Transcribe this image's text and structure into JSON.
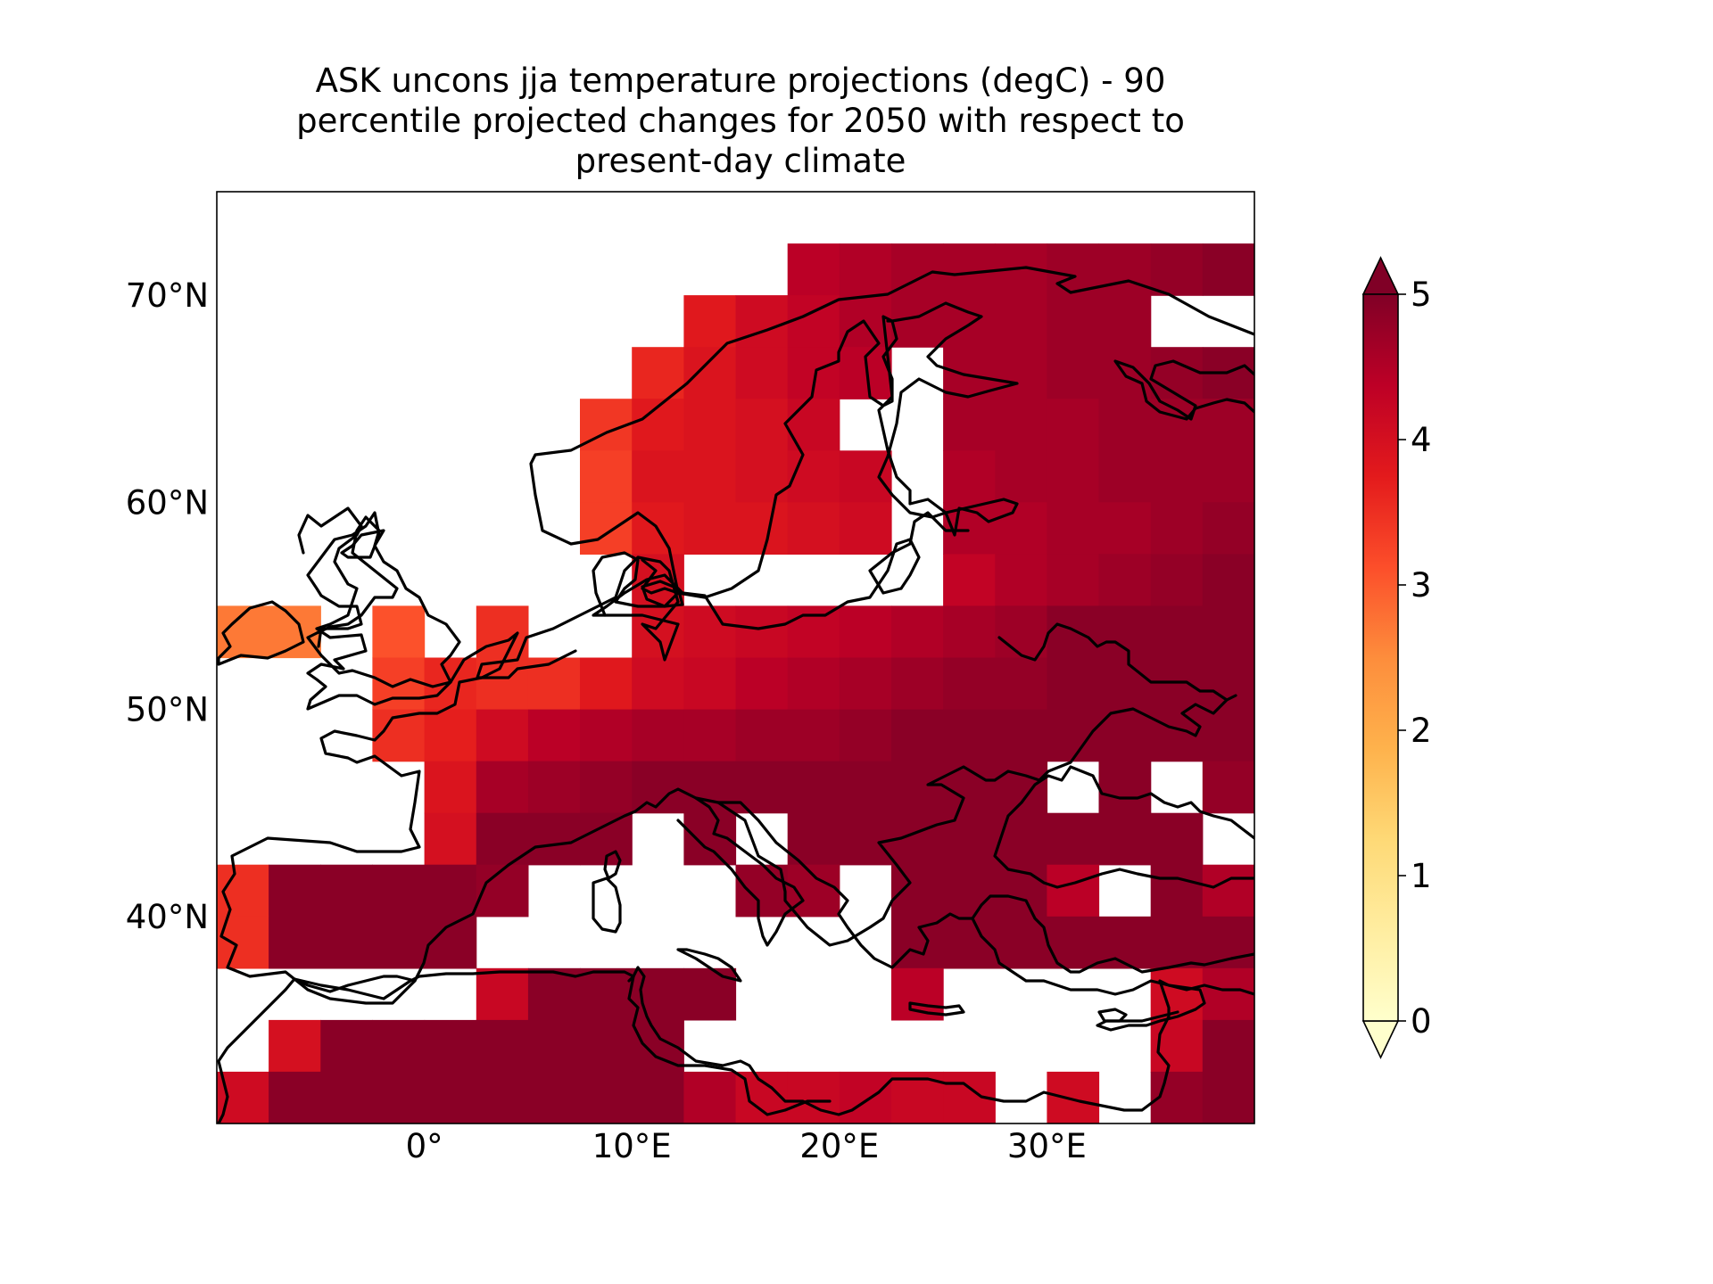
{
  "title_lines": [
    "ASK uncons jja temperature projections (degC) - 90",
    "percentile projected changes for 2050 with respect to",
    "present-day climate"
  ],
  "map": {
    "projection": "PlateCarree",
    "lon_range": [
      -10,
      40
    ],
    "lat_range": [
      30,
      75
    ],
    "lon_ticks": [
      {
        "value": 0,
        "label": "0°"
      },
      {
        "value": 10,
        "label": "10°E"
      },
      {
        "value": 20,
        "label": "20°E"
      },
      {
        "value": 30,
        "label": "30°E"
      }
    ],
    "lat_ticks": [
      {
        "value": 40,
        "label": "40°N"
      },
      {
        "value": 50,
        "label": "50°N"
      },
      {
        "value": 60,
        "label": "60°N"
      },
      {
        "value": 70,
        "label": "70°N"
      }
    ],
    "grid": false,
    "coastlines": true
  },
  "colorbar": {
    "colormap": "YlOrRd",
    "min": 0,
    "max": 5,
    "extend": "both",
    "placement": "right",
    "ticks": [
      {
        "value": 0,
        "label": "0"
      },
      {
        "value": 1,
        "label": "1"
      },
      {
        "value": 2,
        "label": "2"
      },
      {
        "value": 3,
        "label": "3"
      },
      {
        "value": 4,
        "label": "4"
      },
      {
        "value": 5,
        "label": "5"
      }
    ]
  },
  "chart_data": {
    "type": "heatmap",
    "grid_lon0": -10,
    "grid_lat0": 30,
    "cell_lon": 2.5,
    "cell_lat": 2.5,
    "vmin": 0,
    "vmax": 5,
    "rows": [
      {
        "lat": 70,
        "values": [
          null,
          null,
          null,
          null,
          null,
          null,
          null,
          null,
          null,
          null,
          null,
          4.4,
          4.5,
          4.6,
          4.6,
          4.6,
          4.7,
          4.7,
          4.8,
          4.9
        ]
      },
      {
        "lat": 67.5,
        "values": [
          null,
          null,
          null,
          null,
          null,
          null,
          null,
          null,
          null,
          3.8,
          4.1,
          4.3,
          4.5,
          4.6,
          4.6,
          4.6,
          4.7,
          4.7,
          null,
          null
        ]
      },
      {
        "lat": 65,
        "values": [
          null,
          null,
          null,
          null,
          null,
          null,
          null,
          null,
          3.6,
          3.9,
          4.1,
          4.3,
          4.4,
          null,
          4.6,
          4.6,
          4.7,
          4.7,
          4.8,
          4.9
        ]
      },
      {
        "lat": 62.5,
        "values": [
          null,
          null,
          null,
          null,
          null,
          null,
          null,
          3.4,
          3.8,
          3.9,
          4.0,
          4.2,
          null,
          null,
          4.6,
          4.6,
          4.6,
          4.7,
          4.7,
          4.7
        ]
      },
      {
        "lat": 60,
        "values": [
          null,
          null,
          null,
          null,
          null,
          null,
          null,
          3.3,
          3.9,
          3.9,
          4.0,
          4.1,
          4.2,
          null,
          4.5,
          4.6,
          4.6,
          4.7,
          4.7,
          4.7
        ]
      },
      {
        "lat": 57.5,
        "values": [
          null,
          null,
          null,
          null,
          null,
          null,
          null,
          3.3,
          3.8,
          3.9,
          3.9,
          4.0,
          4.1,
          null,
          4.5,
          4.5,
          4.6,
          4.6,
          4.7,
          4.8
        ]
      },
      {
        "lat": 55,
        "values": [
          null,
          null,
          null,
          null,
          null,
          null,
          null,
          null,
          4.0,
          null,
          null,
          null,
          null,
          null,
          4.3,
          4.5,
          4.6,
          4.7,
          4.8,
          4.9
        ]
      },
      {
        "lat": 52.5,
        "values": [
          2.7,
          2.7,
          null,
          3.1,
          null,
          3.5,
          null,
          null,
          4.0,
          4.1,
          4.2,
          4.3,
          4.4,
          4.5,
          4.6,
          4.7,
          4.9,
          4.9,
          4.9,
          4.9
        ]
      },
      {
        "lat": 50,
        "values": [
          null,
          null,
          null,
          3.3,
          3.6,
          3.5,
          3.5,
          3.8,
          4.1,
          4.2,
          4.4,
          4.5,
          4.6,
          4.7,
          4.8,
          4.8,
          4.9,
          4.9,
          4.9,
          4.9
        ]
      },
      {
        "lat": 47.5,
        "values": [
          null,
          null,
          null,
          3.5,
          3.7,
          4.1,
          4.4,
          4.5,
          4.6,
          4.6,
          4.7,
          4.7,
          4.8,
          4.9,
          4.9,
          4.9,
          4.9,
          4.9,
          4.9,
          4.9
        ]
      },
      {
        "lat": 45,
        "values": [
          null,
          null,
          null,
          null,
          3.9,
          4.6,
          4.7,
          4.8,
          4.9,
          4.9,
          4.9,
          4.9,
          4.9,
          4.9,
          4.9,
          4.9,
          null,
          4.9,
          null,
          4.8
        ]
      },
      {
        "lat": 42.5,
        "values": [
          null,
          null,
          null,
          null,
          4.0,
          4.9,
          4.9,
          4.9,
          null,
          4.9,
          null,
          4.9,
          4.9,
          4.9,
          4.9,
          4.9,
          4.9,
          4.9,
          4.9,
          null
        ]
      },
      {
        "lat": 40,
        "values": [
          3.5,
          4.9,
          4.9,
          4.9,
          4.9,
          4.8,
          null,
          null,
          null,
          null,
          4.8,
          4.7,
          null,
          4.9,
          4.9,
          4.9,
          4.4,
          null,
          4.9,
          4.5
        ]
      },
      {
        "lat": 37.5,
        "values": [
          3.5,
          4.9,
          4.9,
          4.9,
          4.9,
          null,
          null,
          null,
          null,
          null,
          null,
          null,
          null,
          4.9,
          4.9,
          4.9,
          4.9,
          4.9,
          4.9,
          4.9
        ]
      },
      {
        "lat": 35,
        "values": [
          null,
          null,
          null,
          null,
          null,
          4.2,
          4.9,
          4.9,
          4.9,
          4.9,
          null,
          null,
          null,
          4.4,
          null,
          null,
          null,
          null,
          4.1,
          4.5
        ]
      },
      {
        "lat": 32.5,
        "values": [
          null,
          4.0,
          4.9,
          4.9,
          4.9,
          4.9,
          4.9,
          4.9,
          4.9,
          null,
          null,
          null,
          null,
          null,
          null,
          null,
          null,
          null,
          4.2,
          4.9
        ]
      },
      {
        "lat": 30,
        "values": [
          4.1,
          4.9,
          4.9,
          4.9,
          4.9,
          4.9,
          4.9,
          4.9,
          4.9,
          4.5,
          4.2,
          4.2,
          4.3,
          4.2,
          4.2,
          null,
          4.1,
          null,
          4.8,
          4.9
        ]
      }
    ]
  }
}
